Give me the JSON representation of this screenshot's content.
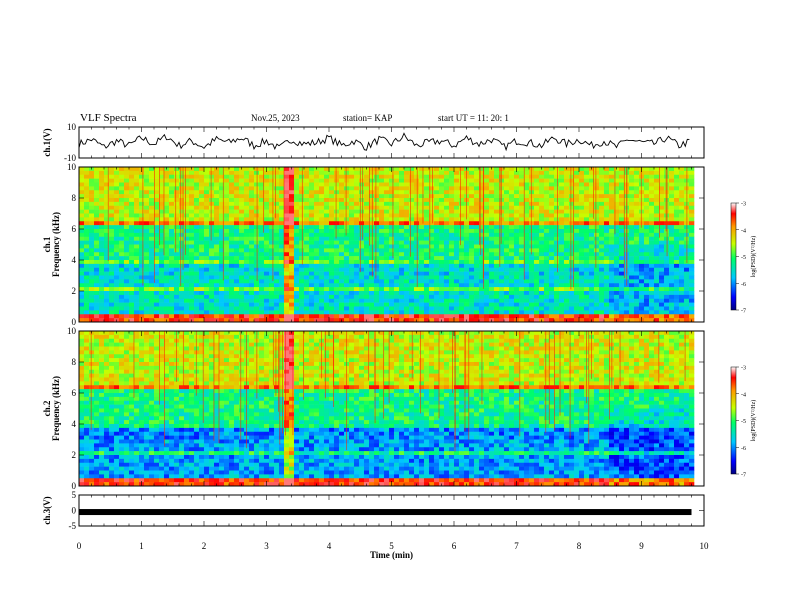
{
  "header": {
    "title": "VLF Spectra",
    "date": "Nov.25, 2023",
    "station": "station= KAP",
    "start_time": "start  UT  =   11: 20: 1"
  },
  "colors": {
    "spectro_low": "#0000ff",
    "spectro_mid": "#00ff66",
    "spectro_high": "#ff0000"
  },
  "chart_data": [
    {
      "type": "line",
      "panel": "ch1-waveform",
      "ylabel": "ch.1(V)",
      "ylim": [
        -10,
        10
      ],
      "y_ticks": [
        "10",
        "-10"
      ],
      "x": [
        0,
        0.2,
        0.4,
        0.6,
        0.8,
        1.0,
        1.2,
        1.4,
        1.6,
        1.8,
        2.0,
        2.2,
        2.4,
        2.6,
        2.8,
        3.0,
        3.2,
        3.4,
        3.6,
        3.8,
        4.0,
        4.2,
        4.4,
        4.6,
        4.8,
        5.0,
        5.2,
        5.4,
        5.6,
        5.8,
        6.0,
        6.2,
        6.4,
        6.6,
        6.8,
        7.0,
        7.2,
        7.4,
        7.6,
        7.8,
        8.0,
        8.2,
        8.4,
        8.6,
        8.8,
        9.0,
        9.2,
        9.4,
        9.6,
        9.8
      ],
      "values": [
        -1,
        2,
        -3,
        1,
        -2,
        3,
        -1,
        4,
        -2,
        1,
        -3,
        2,
        0,
        3,
        -2,
        1,
        -4,
        2,
        -1,
        0,
        3,
        -2,
        1,
        -3,
        2,
        -1,
        4,
        -2,
        0,
        1,
        -2,
        3,
        -1,
        2,
        -3,
        1,
        0,
        -2,
        3,
        -1,
        2,
        -2,
        1,
        -3,
        2,
        0,
        -1,
        3,
        -2,
        1
      ]
    },
    {
      "type": "heatmap",
      "panel": "ch1-spectrogram",
      "ylabel": "ch.1\nFrequency (kHz)",
      "ylim": [
        0,
        10
      ],
      "y_ticks": [
        "0",
        "2",
        "4",
        "6",
        "8",
        "10"
      ],
      "colorbar": {
        "label": "log(PSD)(V²/Hz)",
        "range": [
          -7,
          -3
        ],
        "ticks": [
          "-3",
          "-4",
          "-5",
          "-6",
          "-7"
        ]
      }
    },
    {
      "type": "heatmap",
      "panel": "ch2-spectrogram",
      "ylabel": "ch.2\nFrequency (kHz)",
      "ylim": [
        0,
        10
      ],
      "y_ticks": [
        "0",
        "2",
        "4",
        "6",
        "8",
        "10"
      ],
      "colorbar": {
        "label": "log(PSD)(V²/Hz)",
        "range": [
          -7,
          -3
        ],
        "ticks": [
          "-3",
          "-4",
          "-5",
          "-6",
          "-7"
        ]
      }
    },
    {
      "type": "line",
      "panel": "ch3-waveform",
      "ylabel": "ch.3(V)",
      "ylim": [
        -5,
        5
      ],
      "y_ticks": [
        "5",
        "0",
        "-5"
      ],
      "x": [
        0,
        9.8
      ],
      "values": [
        -0.5,
        -0.5
      ]
    }
  ],
  "x_axis": {
    "xlabel": "Time  (min)",
    "xlim": [
      0,
      10
    ],
    "ticks": [
      "0",
      "1",
      "2",
      "3",
      "4",
      "5",
      "6",
      "7",
      "8",
      "9",
      "10"
    ]
  }
}
